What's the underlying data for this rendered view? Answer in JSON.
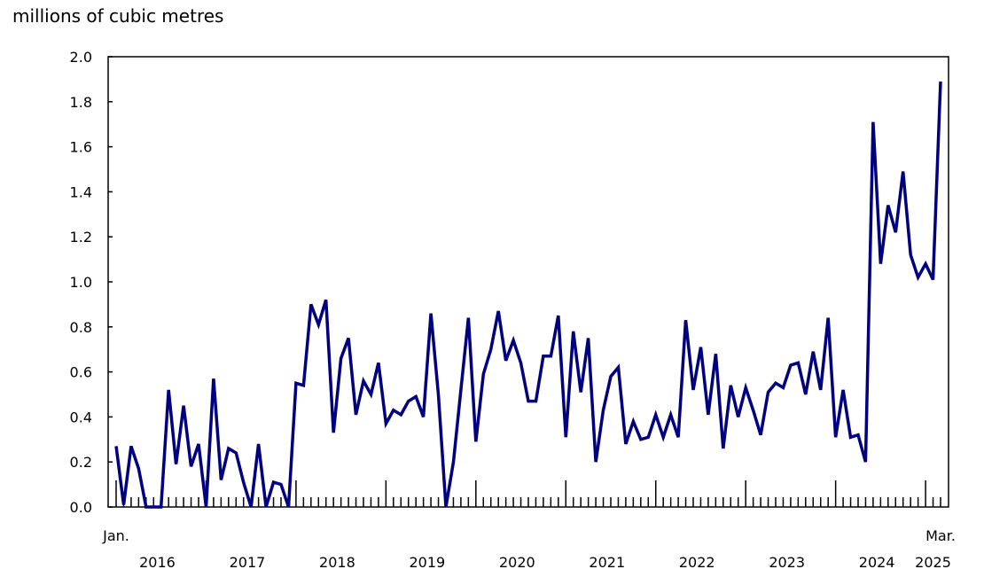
{
  "chart_data": {
    "type": "line",
    "ylabel": "millions of cubic metres",
    "ylim": [
      0,
      2.0
    ],
    "yticks": [
      "0.0",
      "0.2",
      "0.4",
      "0.6",
      "0.8",
      "1.0",
      "1.2",
      "1.4",
      "1.6",
      "1.8",
      "2.0"
    ],
    "x_start_label": "Jan.",
    "x_end_label": "Mar.",
    "year_labels": [
      "2016",
      "2017",
      "2018",
      "2019",
      "2020",
      "2021",
      "2022",
      "2023",
      "2024",
      "2025"
    ],
    "x_range": [
      "2016-01",
      "2025-03"
    ],
    "frequency": "monthly",
    "grid": false,
    "legend": "none",
    "line_color": "#000080",
    "series": [
      {
        "values": [
          0.27,
          0.01,
          0.27,
          0.17,
          0.0,
          0.0,
          0.0,
          0.52,
          0.19,
          0.45,
          0.18,
          0.28,
          0.0,
          0.57,
          0.12,
          0.26,
          0.24,
          0.11,
          0.0,
          0.28,
          0.0,
          0.11,
          0.1,
          0.0,
          0.55,
          0.54,
          0.9,
          0.81,
          0.92,
          0.33,
          0.66,
          0.75,
          0.41,
          0.56,
          0.5,
          0.64,
          0.37,
          0.43,
          0.41,
          0.47,
          0.49,
          0.4,
          0.86,
          0.5,
          0.0,
          0.2,
          0.52,
          0.84,
          0.29,
          0.59,
          0.7,
          0.87,
          0.65,
          0.74,
          0.64,
          0.47,
          0.47,
          0.67,
          0.67,
          0.85,
          0.31,
          0.78,
          0.51,
          0.75,
          0.2,
          0.43,
          0.58,
          0.62,
          0.28,
          0.38,
          0.3,
          0.31,
          0.41,
          0.31,
          0.41,
          0.31,
          0.83,
          0.52,
          0.71,
          0.41,
          0.68,
          0.26,
          0.54,
          0.4,
          0.53,
          0.43,
          0.32,
          0.51,
          0.55,
          0.53,
          0.63,
          0.64,
          0.5,
          0.69,
          0.52,
          0.84,
          0.31,
          0.52,
          0.31,
          0.32,
          0.2,
          1.71,
          1.08,
          1.34,
          1.22,
          1.49,
          1.12,
          1.02,
          1.08,
          1.01,
          1.89
        ]
      }
    ]
  }
}
